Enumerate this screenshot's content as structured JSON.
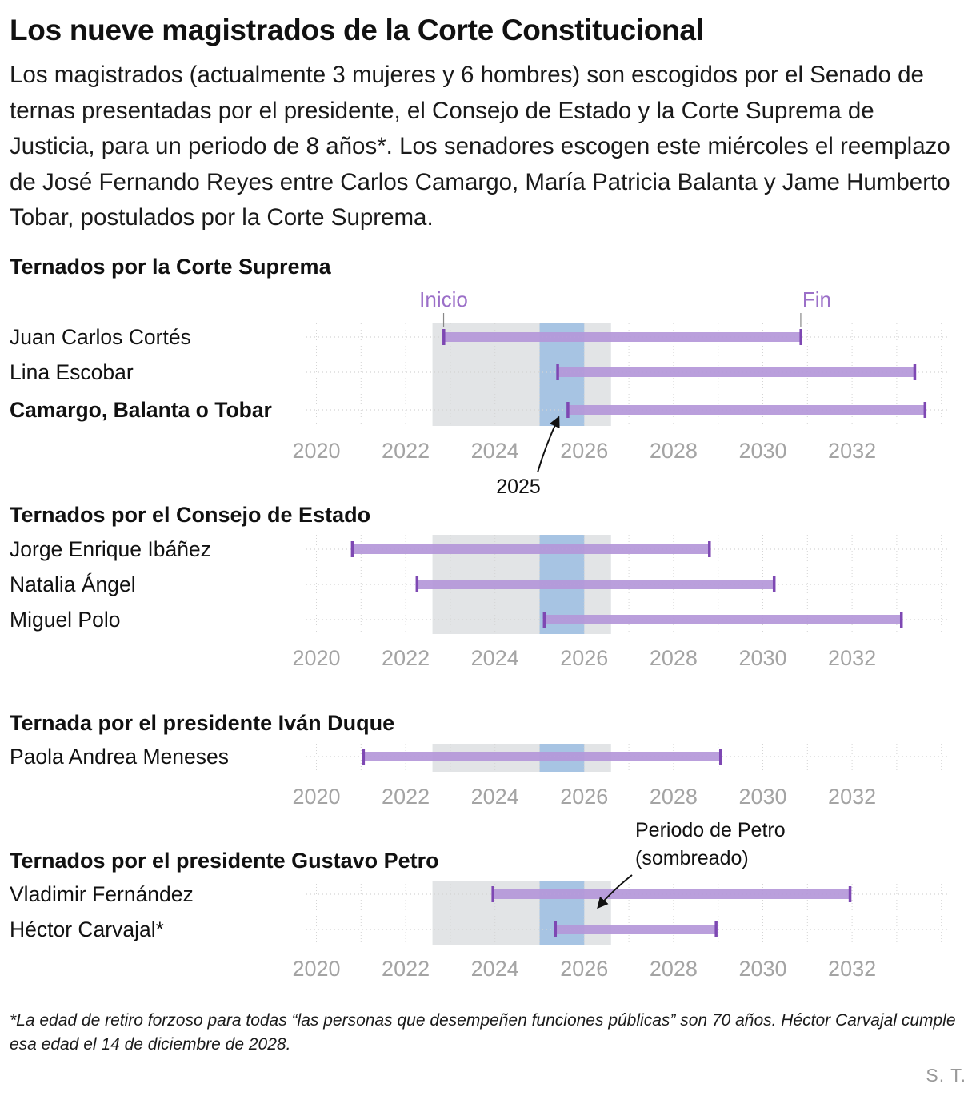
{
  "title": "Los nueve magistrados de la Corte Constitucional",
  "subtitle": "Los magistrados (actualmente 3 mujeres y 6 hombres) son escogidos por el Senado de ternas presentadas por el presidente, el Consejo de Estado y la Corte Suprema de Justicia, para un periodo de 8 años*. Los senadores escogen este miércoles el reemplazo de José Fernando Reyes entre Carlos Camargo, María Patricia Balanta y Jame Humberto Tobar, postulados por la Corte Suprema.",
  "footnote": "*La edad de retiro forzoso para todas “las personas que desempeñen funciones públicas” son 70 años. Héctor Carvajal cumple esa edad el 14 de diciembre de 2028.",
  "credit": "S. T.",
  "colors": {
    "bar": "#b497d9",
    "bar_cap": "#7e48b3",
    "petro_shade": "#e2e4e6",
    "year_2025": "#a7c4e3",
    "grid": "#d4d4d4",
    "tick_label": "#a4a4a4",
    "marker_label": "#9b6fc8"
  },
  "annotations": {
    "inicio": "Inicio",
    "fin": "Fin",
    "year_label": "2025",
    "petro_label_line1": "Periodo de Petro",
    "petro_label_line2": "(sombreado)"
  },
  "chart_data": {
    "type": "range-bar",
    "x_ticks": [
      2020,
      2022,
      2024,
      2026,
      2028,
      2030,
      2032
    ],
    "x_range": [
      2019.75,
      2034.2
    ],
    "petro_period": [
      2022.6,
      2026.6
    ],
    "highlight_year": [
      2025,
      2026
    ],
    "sections": [
      {
        "title": "Ternados por la Corte Suprema",
        "rows": [
          {
            "name": "Juan Carlos Cortés",
            "start": 2022.85,
            "end": 2030.85,
            "bold": false
          },
          {
            "name": "Lina Escobar",
            "start": 2025.4,
            "end": 2033.4,
            "bold": false
          },
          {
            "name": "Camargo, Balanta o Tobar",
            "start": 2025.63,
            "end": 2033.63,
            "bold": true
          }
        ]
      },
      {
        "title": "Ternados por el Consejo de Estado",
        "rows": [
          {
            "name": "Jorge Enrique Ibáñez",
            "start": 2020.8,
            "end": 2028.8,
            "bold": false
          },
          {
            "name": "Natalia Ángel",
            "start": 2022.25,
            "end": 2030.25,
            "bold": false
          },
          {
            "name": "Miguel Polo",
            "start": 2025.1,
            "end": 2033.1,
            "bold": false
          }
        ]
      },
      {
        "title": "Ternada por el presidente Iván Duque",
        "rows": [
          {
            "name": "Paola Andrea Meneses",
            "start": 2021.05,
            "end": 2029.05,
            "bold": false
          }
        ]
      },
      {
        "title": "Ternados por el presidente Gustavo Petro",
        "rows": [
          {
            "name": "Vladimir Fernández",
            "start": 2023.95,
            "end": 2031.95,
            "bold": false
          },
          {
            "name": "Héctor Carvajal*",
            "start": 2025.35,
            "end": 2028.95,
            "bold": false
          }
        ]
      }
    ]
  }
}
